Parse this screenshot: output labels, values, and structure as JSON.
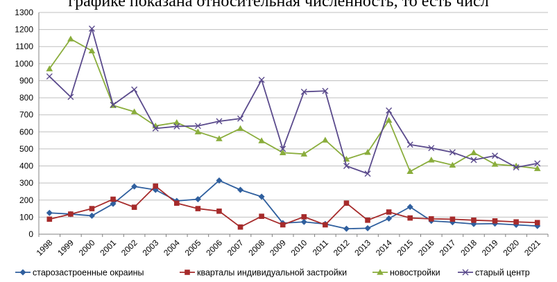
{
  "caption": "графике показана относительная численность, то есть числ",
  "chart_data": {
    "type": "line",
    "title": "",
    "xlabel": "",
    "ylabel": "",
    "ylim": [
      0,
      1300
    ],
    "yticks": [
      0,
      100,
      200,
      300,
      400,
      500,
      600,
      700,
      800,
      900,
      1000,
      1100,
      1200,
      1300
    ],
    "grid": "horizontal",
    "legend_position": "bottom",
    "categories": [
      "1998",
      "1999",
      "2000",
      "2001",
      "2002",
      "2003",
      "2004",
      "2005",
      "2006",
      "2007",
      "2008",
      "2009",
      "2010",
      "2011",
      "2012",
      "2013",
      "2014",
      "2015",
      "2016",
      "2017",
      "2018",
      "2019",
      "2020",
      "2021"
    ],
    "series": [
      {
        "name": "старозастроенные окраины",
        "color": "#2f5f9e",
        "marker": "diamond",
        "values": [
          125,
          118,
          108,
          178,
          280,
          260,
          195,
          205,
          315,
          260,
          220,
          65,
          72,
          60,
          32,
          35,
          92,
          160,
          78,
          70,
          60,
          62,
          55,
          48
        ]
      },
      {
        "name": "кварталы индивидуальной застройки",
        "color": "#a62b2b",
        "marker": "square",
        "values": [
          88,
          118,
          150,
          205,
          158,
          282,
          182,
          150,
          135,
          42,
          105,
          55,
          102,
          55,
          182,
          82,
          130,
          95,
          90,
          88,
          82,
          78,
          72,
          68
        ]
      },
      {
        "name": "новостройки",
        "color": "#8aad3c",
        "marker": "triangle",
        "values": [
          970,
          1145,
          1075,
          755,
          718,
          635,
          655,
          600,
          560,
          620,
          548,
          478,
          470,
          552,
          440,
          480,
          668,
          368,
          435,
          405,
          478,
          410,
          400,
          385
        ]
      },
      {
        "name": "старый центр",
        "color": "#5a4a8c",
        "marker": "x",
        "values": [
          925,
          805,
          1205,
          758,
          848,
          620,
          632,
          635,
          662,
          678,
          905,
          500,
          835,
          840,
          400,
          355,
          725,
          525,
          505,
          480,
          435,
          460,
          392,
          415
        ]
      }
    ]
  }
}
